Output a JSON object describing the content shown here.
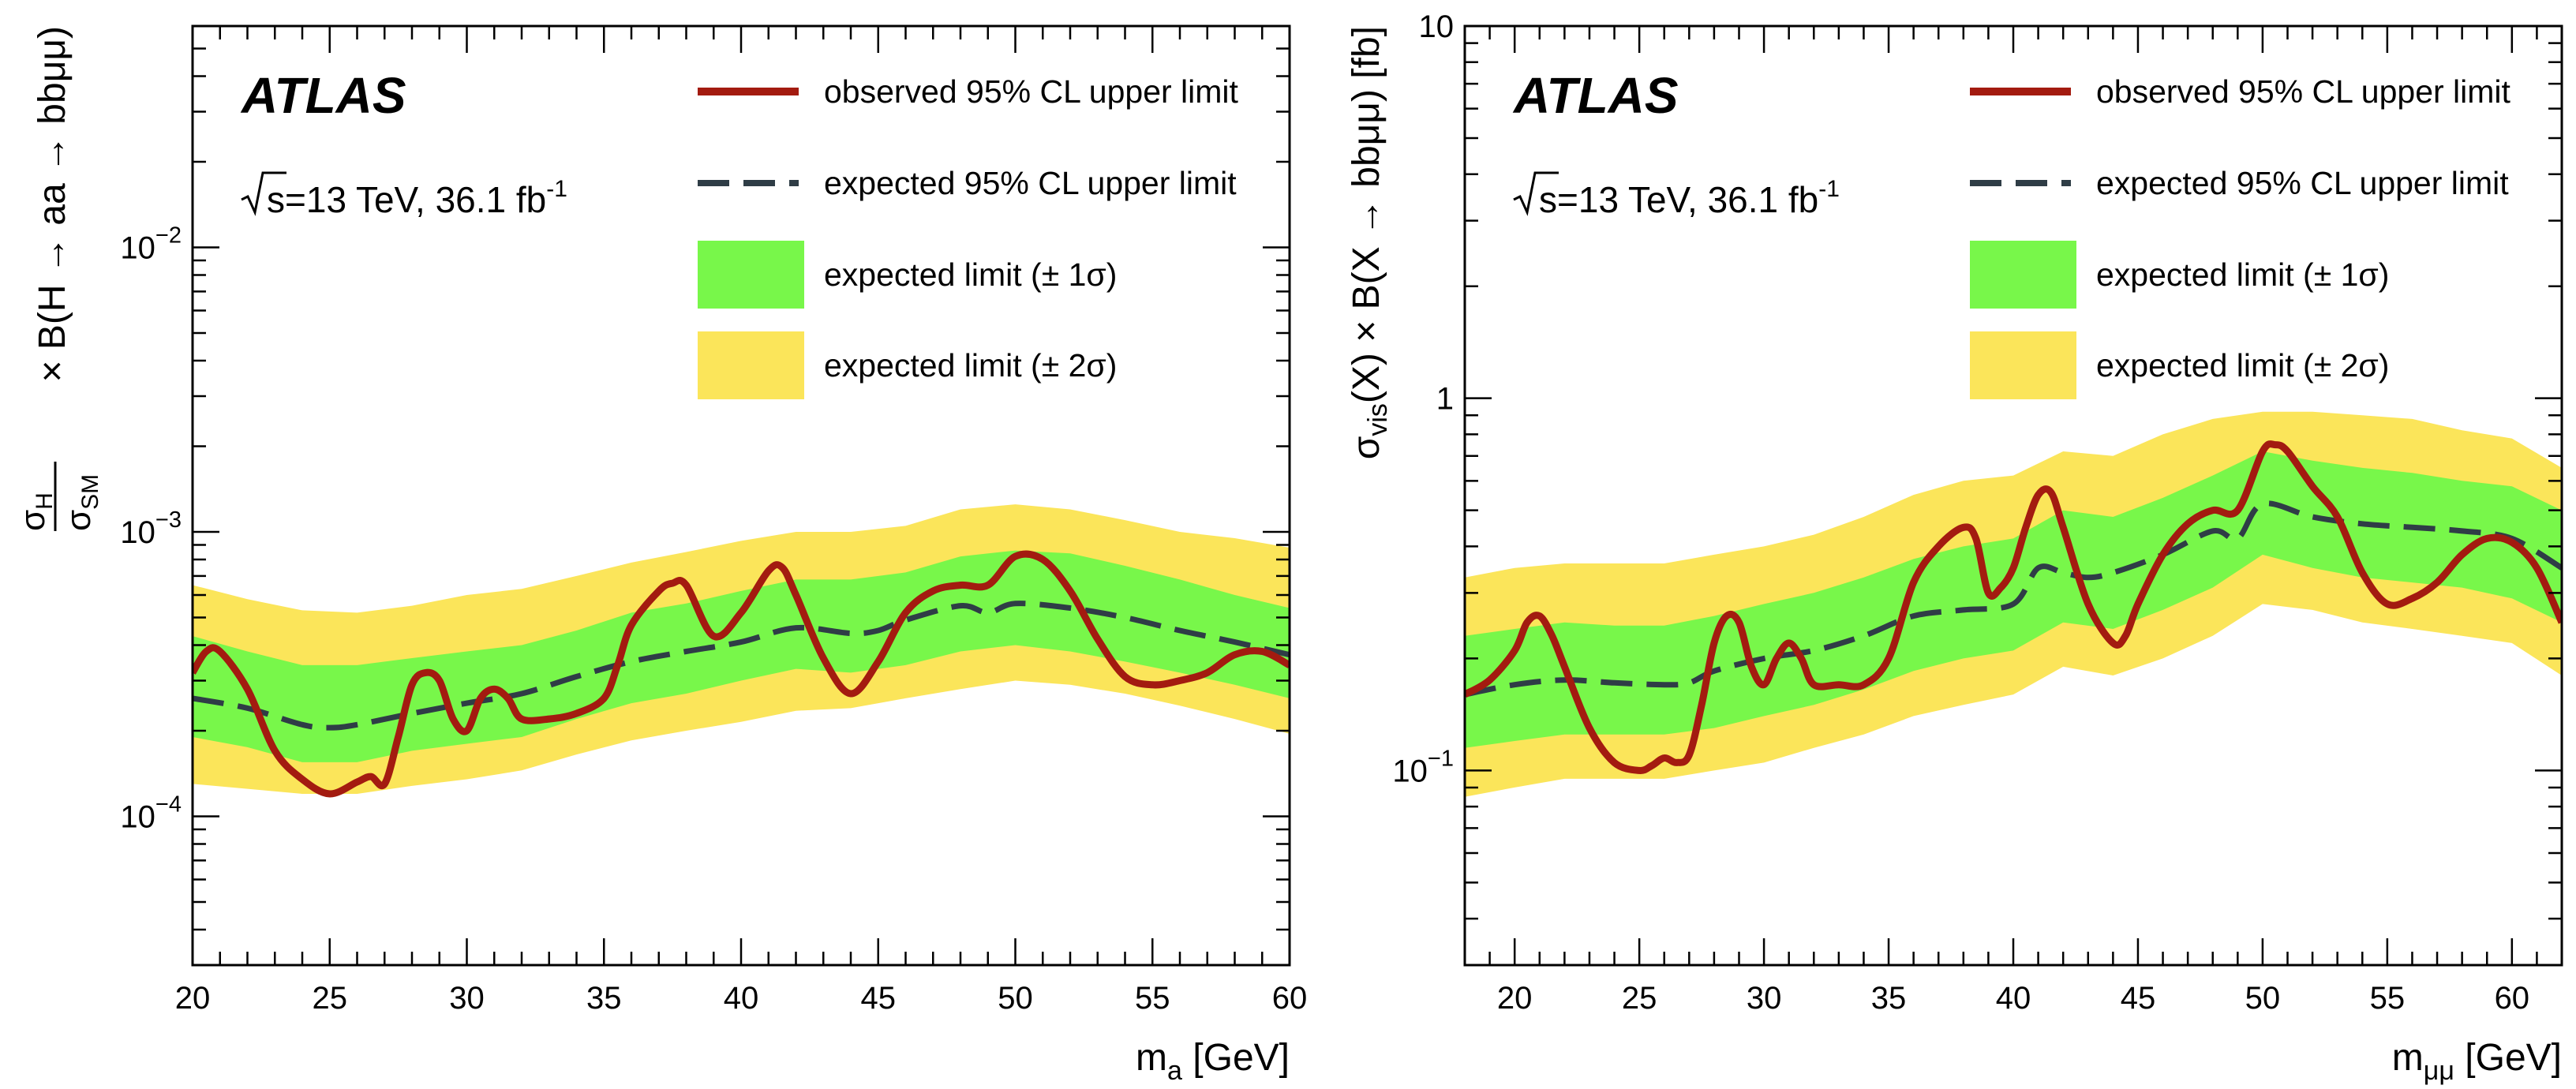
{
  "chart_data": [
    {
      "type": "line",
      "x_scale": "linear",
      "y_scale": "log",
      "xlim": [
        20,
        60
      ],
      "ylim": [
        3e-05,
        0.06
      ],
      "xlabel": {
        "main": "m",
        "sub": "a",
        "unit": " [GeV]"
      },
      "ylabel": {
        "prefix": "σ",
        "prefix_sub": "H",
        "over": "σ",
        "over_sub": "SM",
        "main": "× B(H → aa → bbμμ)"
      },
      "x_ticks": [
        20,
        25,
        30,
        35,
        40,
        45,
        50,
        55,
        60
      ],
      "x_tick_labels": [
        "20",
        "25",
        "30",
        "35",
        "40",
        "45",
        "50",
        "55",
        "60"
      ],
      "y_ticks": [
        {
          "value": 0.0001,
          "base": "10",
          "exp": "−4"
        },
        {
          "value": 0.001,
          "base": "10",
          "exp": "−3"
        },
        {
          "value": 0.01,
          "base": "10",
          "exp": "−2"
        }
      ],
      "experiment": "ATLAS",
      "energy_label": {
        "sqrt": "s",
        "rest": "=13 TeV, 36.1 fb",
        "sup": "-1"
      },
      "legend": {
        "observed": "observed 95% CL upper limit",
        "expected": "expected 95% CL upper limit",
        "band1": "expected limit (± 1σ)",
        "band2": "expected limit (± 2σ)"
      },
      "colors": {
        "observed": "#a31b10",
        "expected": "#2f3d46",
        "band1": "#78f74a",
        "band2": "#fbe55a"
      },
      "series": [
        {
          "name": "observed 95% CL upper limit",
          "x": [
            20,
            20.5,
            21,
            22,
            23,
            24,
            25,
            26,
            26.5,
            27,
            27.5,
            28,
            28.5,
            29,
            29.5,
            30,
            30.5,
            31,
            31.5,
            32,
            33,
            34,
            35,
            35.5,
            36,
            37,
            37.5,
            38,
            39,
            40,
            41,
            41.5,
            42,
            43,
            44,
            45,
            46,
            47,
            48,
            49,
            50,
            51,
            52,
            53,
            54,
            55,
            56,
            57,
            58,
            59,
            60
          ],
          "y": [
            0.00032,
            0.00038,
            0.00038,
            0.00028,
            0.00017,
            0.000135,
            0.00012,
            0.000132,
            0.000138,
            0.00013,
            0.00019,
            0.00029,
            0.00032,
            0.0003,
            0.00022,
            0.0002,
            0.00026,
            0.00028,
            0.00026,
            0.00022,
            0.00022,
            0.00023,
            0.00026,
            0.00034,
            0.00047,
            0.00062,
            0.00066,
            0.00065,
            0.00043,
            0.00052,
            0.00073,
            0.00075,
            0.0006,
            0.00036,
            0.00027,
            0.00035,
            0.00052,
            0.00062,
            0.00065,
            0.00065,
            0.00082,
            0.0008,
            0.00062,
            0.00042,
            0.00031,
            0.00029,
            0.0003,
            0.00032,
            0.00037,
            0.00038,
            0.00034
          ]
        },
        {
          "name": "expected 95% CL upper limit",
          "x": [
            20,
            22,
            24,
            25,
            26,
            28,
            30,
            32,
            34,
            36,
            38,
            40,
            42,
            44,
            45,
            46,
            48,
            49,
            50,
            52,
            54,
            56,
            58,
            60
          ],
          "y": [
            0.00026,
            0.00024,
            0.00021,
            0.000205,
            0.00021,
            0.00023,
            0.00025,
            0.00027,
            0.00031,
            0.00035,
            0.00038,
            0.00041,
            0.00046,
            0.00044,
            0.00045,
            0.00049,
            0.00055,
            0.00052,
            0.00056,
            0.00054,
            0.0005,
            0.00045,
            0.00041,
            0.00037
          ]
        },
        {
          "name": "expected limit (± 1σ)",
          "x": [
            20,
            22,
            24,
            26,
            28,
            30,
            32,
            34,
            36,
            38,
            40,
            42,
            44,
            46,
            48,
            50,
            52,
            54,
            56,
            58,
            60
          ],
          "lower": [
            0.00019,
            0.000175,
            0.000155,
            0.000155,
            0.00017,
            0.00018,
            0.00019,
            0.00022,
            0.00025,
            0.00027,
            0.0003,
            0.00033,
            0.00032,
            0.00034,
            0.00038,
            0.0004,
            0.00038,
            0.00035,
            0.00032,
            0.00029,
            0.00026
          ],
          "upper": [
            0.00043,
            0.00038,
            0.00034,
            0.00034,
            0.00036,
            0.00038,
            0.0004,
            0.00045,
            0.00052,
            0.00056,
            0.00062,
            0.00068,
            0.00068,
            0.00072,
            0.00082,
            0.00086,
            0.00084,
            0.00076,
            0.00068,
            0.0006,
            0.00054
          ]
        },
        {
          "name": "expected limit (± 2σ)",
          "x": [
            20,
            22,
            24,
            26,
            28,
            30,
            32,
            34,
            36,
            38,
            40,
            42,
            44,
            46,
            48,
            50,
            52,
            54,
            56,
            58,
            60
          ],
          "lower": [
            0.00013,
            0.000125,
            0.00012,
            0.00012,
            0.000128,
            0.000135,
            0.000145,
            0.000165,
            0.000185,
            0.0002,
            0.000215,
            0.000235,
            0.00024,
            0.00026,
            0.00028,
            0.0003,
            0.00029,
            0.00027,
            0.000245,
            0.00022,
            0.000195
          ],
          "upper": [
            0.00065,
            0.00058,
            0.00053,
            0.00052,
            0.00055,
            0.0006,
            0.00063,
            0.0007,
            0.00078,
            0.00085,
            0.00093,
            0.001,
            0.001,
            0.00105,
            0.0012,
            0.00125,
            0.0012,
            0.0011,
            0.001,
            0.00095,
            0.00088
          ]
        }
      ]
    },
    {
      "type": "line",
      "x_scale": "linear",
      "y_scale": "log",
      "xlim": [
        18,
        62
      ],
      "ylim": [
        0.03,
        10
      ],
      "xlabel": {
        "main": "m",
        "sub": "μμ",
        "unit": " [GeV]"
      },
      "ylabel": {
        "prefix": "σ",
        "prefix_sub": "vis",
        "main": "(X) × B(X → bbμμ) [fb]"
      },
      "x_ticks": [
        20,
        25,
        30,
        35,
        40,
        45,
        50,
        55,
        60
      ],
      "x_tick_labels": [
        "20",
        "25",
        "30",
        "35",
        "40",
        "45",
        "50",
        "55",
        "60"
      ],
      "y_ticks": [
        {
          "value": 0.1,
          "base": "10",
          "exp": "−1"
        },
        {
          "value": 1,
          "base": "1",
          "exp": ""
        },
        {
          "value": 10,
          "base": "10",
          "exp": ""
        }
      ],
      "experiment": "ATLAS",
      "energy_label": {
        "sqrt": "s",
        "rest": "=13 TeV, 36.1 fb",
        "sup": "-1"
      },
      "legend": {
        "observed": "observed 95% CL upper limit",
        "expected": "expected 95% CL upper limit",
        "band1": "expected limit (± 1σ)",
        "band2": "expected limit (± 2σ)"
      },
      "colors": {
        "observed": "#a31b10",
        "expected": "#2f3d46",
        "band1": "#78f74a",
        "band2": "#fbe55a"
      },
      "series": [
        {
          "name": "observed 95% CL upper limit",
          "x": [
            18,
            19,
            20,
            20.5,
            21,
            21.5,
            22,
            23,
            24,
            25,
            25.5,
            26,
            26.5,
            27,
            27.5,
            28,
            28.5,
            29,
            29.5,
            30,
            30.5,
            31,
            31.5,
            32,
            33,
            34,
            35,
            36,
            37,
            38,
            38.5,
            39,
            39.5,
            40,
            40.5,
            41,
            41.5,
            42,
            43,
            44,
            44.5,
            45,
            46,
            47,
            48,
            49,
            50,
            50.5,
            51,
            52,
            53,
            54,
            55,
            56,
            57,
            58,
            59,
            60,
            61,
            62
          ],
          "y": [
            0.16,
            0.175,
            0.21,
            0.25,
            0.26,
            0.23,
            0.19,
            0.13,
            0.105,
            0.1,
            0.103,
            0.108,
            0.105,
            0.11,
            0.15,
            0.22,
            0.26,
            0.25,
            0.19,
            0.17,
            0.2,
            0.22,
            0.2,
            0.17,
            0.17,
            0.17,
            0.2,
            0.32,
            0.4,
            0.45,
            0.42,
            0.3,
            0.31,
            0.35,
            0.45,
            0.55,
            0.56,
            0.45,
            0.28,
            0.22,
            0.23,
            0.28,
            0.38,
            0.46,
            0.5,
            0.5,
            0.72,
            0.75,
            0.72,
            0.58,
            0.48,
            0.34,
            0.28,
            0.29,
            0.32,
            0.38,
            0.42,
            0.41,
            0.35,
            0.25
          ]
        },
        {
          "name": "expected 95% CL upper limit",
          "x": [
            18,
            20,
            22,
            24,
            26,
            27,
            28,
            30,
            32,
            34,
            36,
            38,
            40,
            41,
            42,
            43,
            44,
            46,
            48,
            49,
            50,
            52,
            54,
            56,
            58,
            60,
            62
          ],
          "y": [
            0.16,
            0.17,
            0.175,
            0.172,
            0.17,
            0.172,
            0.185,
            0.2,
            0.21,
            0.23,
            0.26,
            0.27,
            0.28,
            0.35,
            0.34,
            0.33,
            0.34,
            0.38,
            0.44,
            0.42,
            0.52,
            0.48,
            0.46,
            0.45,
            0.44,
            0.42,
            0.35
          ]
        },
        {
          "name": "expected limit (± 1σ)",
          "x": [
            18,
            20,
            22,
            24,
            26,
            28,
            30,
            32,
            34,
            36,
            38,
            40,
            42,
            44,
            46,
            48,
            50,
            52,
            54,
            56,
            58,
            60,
            62
          ],
          "lower": [
            0.115,
            0.12,
            0.125,
            0.125,
            0.125,
            0.13,
            0.14,
            0.15,
            0.165,
            0.185,
            0.2,
            0.21,
            0.25,
            0.24,
            0.27,
            0.31,
            0.38,
            0.35,
            0.33,
            0.32,
            0.31,
            0.29,
            0.25
          ],
          "upper": [
            0.23,
            0.24,
            0.25,
            0.245,
            0.245,
            0.26,
            0.28,
            0.3,
            0.33,
            0.37,
            0.4,
            0.42,
            0.5,
            0.48,
            0.54,
            0.62,
            0.72,
            0.68,
            0.65,
            0.63,
            0.6,
            0.58,
            0.5
          ]
        },
        {
          "name": "expected limit (± 2σ)",
          "x": [
            18,
            20,
            22,
            24,
            26,
            28,
            30,
            32,
            34,
            36,
            38,
            40,
            42,
            44,
            46,
            48,
            50,
            52,
            54,
            56,
            58,
            60,
            62
          ],
          "lower": [
            0.085,
            0.09,
            0.095,
            0.095,
            0.095,
            0.1,
            0.105,
            0.115,
            0.125,
            0.14,
            0.15,
            0.16,
            0.19,
            0.18,
            0.2,
            0.23,
            0.28,
            0.27,
            0.25,
            0.24,
            0.23,
            0.22,
            0.18
          ],
          "upper": [
            0.33,
            0.35,
            0.36,
            0.36,
            0.36,
            0.38,
            0.4,
            0.43,
            0.48,
            0.55,
            0.6,
            0.62,
            0.72,
            0.7,
            0.8,
            0.88,
            0.92,
            0.92,
            0.9,
            0.88,
            0.82,
            0.78,
            0.65
          ]
        }
      ]
    }
  ]
}
